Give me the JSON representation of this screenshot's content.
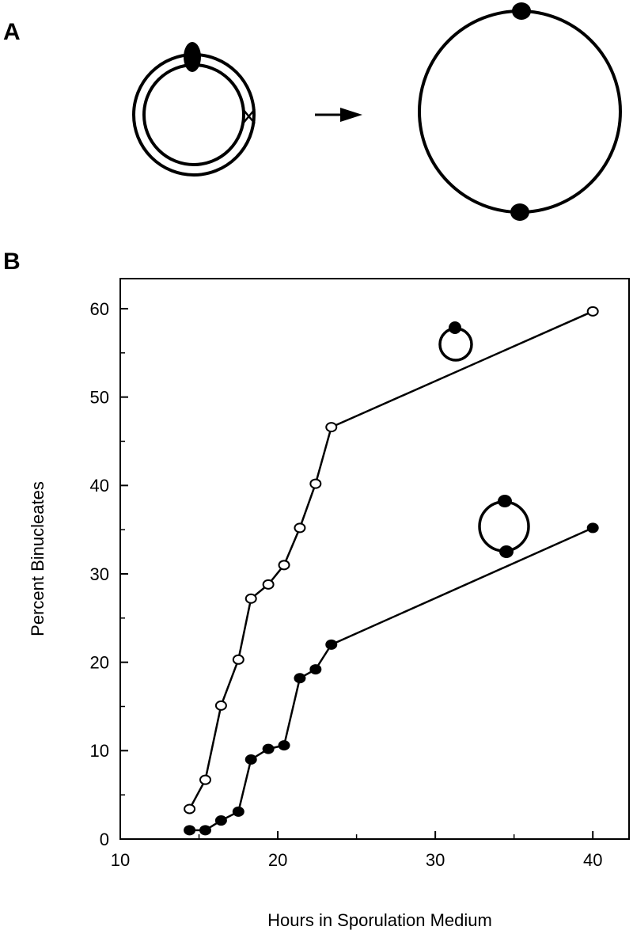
{
  "panel_labels": {
    "a": "A",
    "b": "B"
  },
  "chart_data": {
    "type": "line",
    "x_label": "Hours in Sporulation Medium",
    "y_label": "Percent Binucleates",
    "xlim": [
      10,
      42.3
    ],
    "ylim": [
      0,
      63.4
    ],
    "xticks": [
      10,
      20,
      30,
      40
    ],
    "yticks": [
      0,
      10,
      20,
      30,
      40,
      50,
      60
    ],
    "xminorticks": [
      15,
      25,
      35
    ],
    "yminorticks": [
      5,
      15,
      25,
      35,
      45,
      55
    ],
    "series": [
      {
        "color": "#000000",
        "marker_fill": "#ffffff",
        "x": [
          14.4,
          15.4,
          16.4,
          17.5,
          18.3,
          19.4,
          20.4,
          21.4,
          22.4,
          23.4,
          40
        ],
        "values": [
          3.4,
          6.7,
          15.1,
          20.3,
          27.2,
          28.8,
          31.0,
          35.2,
          40.2,
          46.6,
          59.7
        ]
      },
      {
        "color": "#000000",
        "marker_fill": "#000000",
        "x": [
          14.4,
          15.4,
          16.4,
          17.5,
          18.3,
          19.4,
          20.4,
          21.4,
          22.4,
          23.4,
          40
        ],
        "values": [
          1.0,
          1.0,
          2.1,
          3.1,
          9.0,
          10.2,
          10.6,
          18.2,
          19.2,
          22.0,
          35.2
        ]
      }
    ]
  }
}
